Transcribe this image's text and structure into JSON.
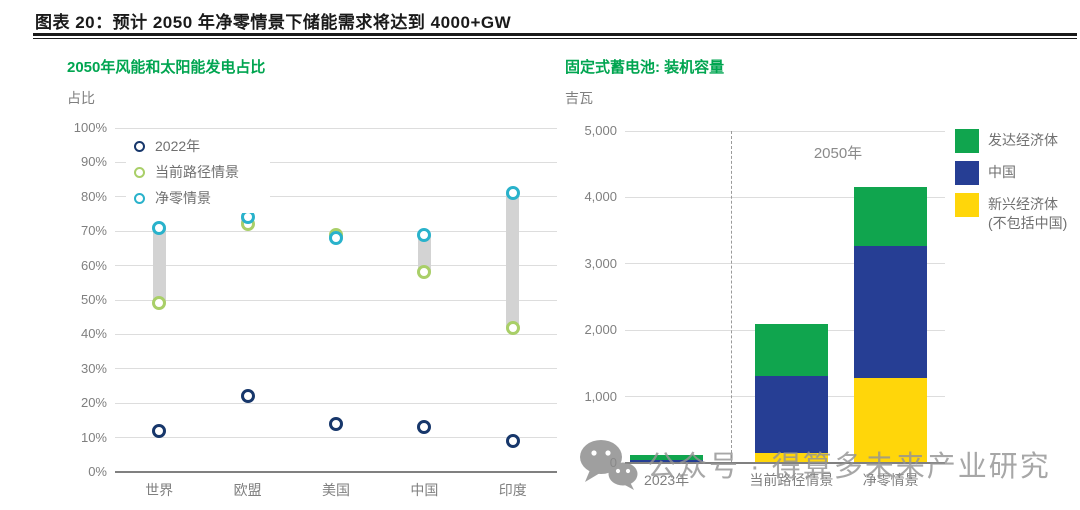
{
  "header": {
    "title": "图表 20：预计 2050 年净零情景下储能需求将达到 4000+GW"
  },
  "colors": {
    "title_green": "#00A550",
    "bar_green": "#10A54E",
    "bar_blue": "#263E94",
    "bar_yellow": "#FFD60A",
    "dot_navy": "#17376B",
    "dot_green": "#A9CF68",
    "dot_cyan": "#29B2CB",
    "range_gray": "#D3D3D3"
  },
  "watermark": {
    "icon": "wechat-icon",
    "text": "公众号 · 得算多未来产业研究"
  },
  "chart_data": [
    {
      "id": "wind-solar-share",
      "type": "scatter",
      "title": "2050年风能和太阳能发电占比",
      "ylabel": "占比",
      "xlabel": "",
      "ylim": [
        0,
        100
      ],
      "grid": true,
      "legend_position": "top-left-overlay",
      "categories": [
        "世界",
        "欧盟",
        "美国",
        "中国",
        "印度"
      ],
      "series": [
        {
          "name": "2022年",
          "color": "#17376B",
          "values": [
            12,
            22,
            14,
            13,
            9
          ]
        },
        {
          "name": "当前路径情景",
          "color": "#A9CF68",
          "values": [
            49,
            72,
            69,
            58,
            42
          ]
        },
        {
          "name": "净零情景",
          "color": "#29B2CB",
          "values": [
            71,
            74,
            68,
            69,
            81
          ]
        }
      ],
      "range_bars": {
        "from_series": 1,
        "to_series": 2,
        "color": "#D3D3D3"
      },
      "yticks": [
        {
          "label": "0%",
          "v": 0
        },
        {
          "label": "10%",
          "v": 10
        },
        {
          "label": "20%",
          "v": 20
        },
        {
          "label": "30%",
          "v": 30
        },
        {
          "label": "40%",
          "v": 40
        },
        {
          "label": "50%",
          "v": 50
        },
        {
          "label": "60%",
          "v": 60
        },
        {
          "label": "70%",
          "v": 70
        },
        {
          "label": "80%",
          "v": 80
        },
        {
          "label": "90%",
          "v": 90
        },
        {
          "label": "100%",
          "v": 100
        }
      ]
    },
    {
      "id": "stationary-battery-capacity",
      "type": "bar",
      "title": "固定式蓄电池: 装机容量",
      "ylabel": "吉瓦",
      "xlabel": "",
      "ylim": [
        0,
        5000
      ],
      "grid": true,
      "legend_position": "right",
      "categories": [
        "2023年",
        "当前路径情景",
        "净零情景"
      ],
      "series": [
        {
          "name": "新兴经济体(不包括中国)",
          "color": "#FFD60A",
          "values": [
            10,
            150,
            1280
          ]
        },
        {
          "name": "中国",
          "color": "#263E94",
          "values": [
            40,
            1160,
            1990
          ]
        },
        {
          "name": "发达经济体",
          "color": "#10A54E",
          "values": [
            70,
            790,
            880
          ]
        }
      ],
      "totals": [
        120,
        2100,
        4150
      ],
      "annotation": "2050年",
      "divider_note": "虚线分隔2023年与2050年情景",
      "legend": [
        {
          "line1": "发达经济体",
          "line2": "",
          "color": "#10A54E"
        },
        {
          "line1": "中国",
          "line2": "",
          "color": "#263E94"
        },
        {
          "line1": "新兴经济体",
          "line2": "(不包括中国)",
          "color": "#FFD60A"
        }
      ],
      "yticks": [
        {
          "label": "0",
          "v": 0
        },
        {
          "label": "1,000",
          "v": 1000
        },
        {
          "label": "2,000",
          "v": 2000
        },
        {
          "label": "3,000",
          "v": 3000
        },
        {
          "label": "4,000",
          "v": 4000
        },
        {
          "label": "5,000",
          "v": 5000
        }
      ]
    }
  ]
}
